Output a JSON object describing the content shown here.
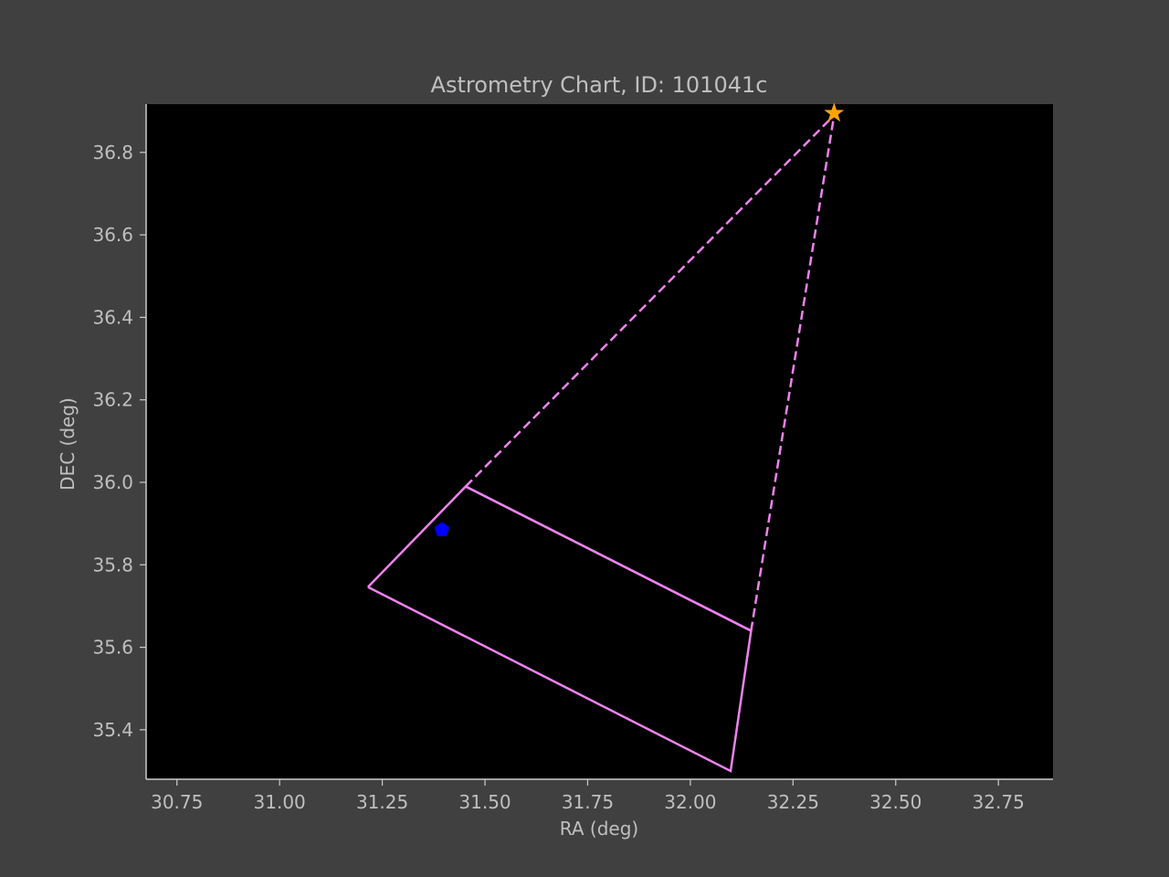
{
  "chart_data": {
    "type": "scatter",
    "title": "Astrometry Chart, ID: 101041c",
    "xlabel": "RA (deg)",
    "ylabel": "DEC (deg)",
    "xlim": [
      30.675,
      32.883
    ],
    "ylim": [
      35.28,
      36.917
    ],
    "x_ticks": [
      "30.75",
      "31.00",
      "31.25",
      "31.50",
      "31.75",
      "32.00",
      "32.25",
      "32.50",
      "32.75"
    ],
    "y_ticks": [
      "35.4",
      "35.6",
      "35.8",
      "36.0",
      "36.2",
      "36.4",
      "36.6",
      "36.8"
    ],
    "grid": false,
    "background_color": "#000000",
    "figure_color": "#404040",
    "footprint": {
      "color": "#ee82ee",
      "outline": [
        [
          31.215,
          35.746
        ],
        [
          31.453,
          35.99
        ],
        [
          32.148,
          35.64
        ],
        [
          32.098,
          35.3
        ],
        [
          31.215,
          35.746
        ]
      ],
      "divider": [
        [
          31.453,
          35.99
        ],
        [
          32.148,
          35.64
        ]
      ]
    },
    "projection_lines": {
      "color": "#ee82ee",
      "style": "dashed",
      "lines": [
        [
          [
            31.453,
            35.99
          ],
          [
            32.35,
            36.89
          ]
        ],
        [
          [
            32.148,
            35.64
          ],
          [
            32.35,
            36.89
          ]
        ]
      ]
    },
    "markers": [
      {
        "x": 31.395,
        "y": 35.885,
        "shape": "pentagon",
        "color": "#0000ff"
      },
      {
        "x": 32.35,
        "y": 36.895,
        "shape": "star",
        "color": "#ffa500"
      }
    ]
  }
}
